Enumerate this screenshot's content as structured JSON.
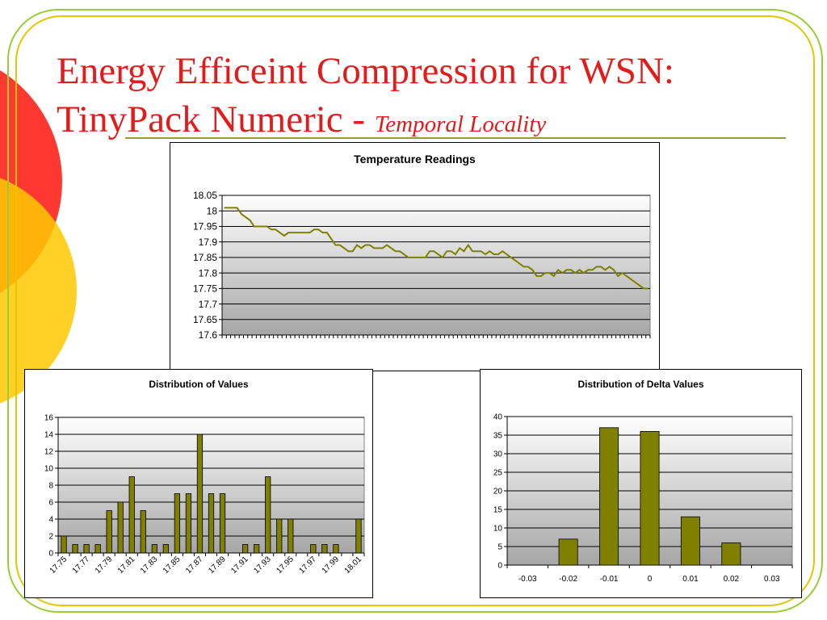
{
  "slide": {
    "title_line1": "Energy Efficeint Compression for WSN:",
    "title_line2": "TinyPack Numeric - ",
    "title_sub": "Temporal Locality",
    "colors": {
      "title": "#e21b1b",
      "series": "#808000",
      "border_accent": "#9acd32"
    }
  },
  "chart_data": [
    {
      "type": "line",
      "title": "Temperature Readings",
      "xlabel": "",
      "ylabel": "",
      "ylim": [
        17.6,
        18.05
      ],
      "yticks": [
        "17.6",
        "17.65",
        "17.7",
        "17.75",
        "17.8",
        "17.85",
        "17.9",
        "17.95",
        "18",
        "18.05"
      ],
      "grid": true,
      "series": [
        {
          "color": "#808000",
          "values": [
            18.01,
            18.01,
            18.01,
            18.01,
            17.99,
            17.98,
            17.97,
            17.95,
            17.95,
            17.95,
            17.95,
            17.94,
            17.94,
            17.93,
            17.92,
            17.93,
            17.93,
            17.93,
            17.93,
            17.93,
            17.93,
            17.94,
            17.94,
            17.93,
            17.93,
            17.91,
            17.89,
            17.89,
            17.88,
            17.87,
            17.87,
            17.89,
            17.88,
            17.89,
            17.89,
            17.88,
            17.88,
            17.88,
            17.89,
            17.88,
            17.87,
            17.87,
            17.86,
            17.85,
            17.85,
            17.85,
            17.85,
            17.85,
            17.87,
            17.87,
            17.86,
            17.85,
            17.87,
            17.87,
            17.86,
            17.88,
            17.87,
            17.89,
            17.87,
            17.87,
            17.87,
            17.86,
            17.87,
            17.86,
            17.86,
            17.87,
            17.86,
            17.85,
            17.84,
            17.83,
            17.82,
            17.82,
            17.81,
            17.79,
            17.79,
            17.8,
            17.8,
            17.79,
            17.81,
            17.8,
            17.81,
            17.81,
            17.8,
            17.81,
            17.8,
            17.81,
            17.81,
            17.82,
            17.82,
            17.81,
            17.82,
            17.81,
            17.79,
            17.8,
            17.79,
            17.78,
            17.77,
            17.76,
            17.75,
            17.75
          ]
        }
      ]
    },
    {
      "type": "bar",
      "title": "Distribution of Values",
      "xlabel": "",
      "ylabel": "",
      "ylim": [
        0,
        16
      ],
      "yticks": [
        "0",
        "2",
        "4",
        "6",
        "8",
        "10",
        "12",
        "14",
        "16"
      ],
      "grid": true,
      "categories": [
        "17.75",
        "17.76",
        "17.77",
        "17.78",
        "17.79",
        "17.8",
        "17.81",
        "17.82",
        "17.83",
        "17.84",
        "17.85",
        "17.86",
        "17.87",
        "17.88",
        "17.89",
        "17.9",
        "17.91",
        "17.92",
        "17.93",
        "17.94",
        "17.95",
        "17.96",
        "17.97",
        "17.98",
        "17.99",
        "18",
        "18.01"
      ],
      "tick_labels": [
        "17.75",
        "",
        "17.77",
        "",
        "17.79",
        "",
        "17.81",
        "",
        "17.83",
        "",
        "17.85",
        "",
        "17.87",
        "",
        "17.89",
        "",
        "17.91",
        "",
        "17.93",
        "",
        "17.95",
        "",
        "17.97",
        "",
        "17.99",
        "",
        "18.01"
      ],
      "values": [
        2,
        1,
        1,
        1,
        5,
        6,
        9,
        5,
        1,
        1,
        7,
        7,
        14,
        7,
        7,
        0,
        1,
        1,
        9,
        4,
        4,
        0,
        1,
        1,
        1,
        0,
        4
      ],
      "color": "#808000"
    },
    {
      "type": "bar",
      "title": "Distribution of Delta Values",
      "xlabel": "",
      "ylabel": "",
      "ylim": [
        0,
        40
      ],
      "yticks": [
        "0",
        "5",
        "10",
        "15",
        "20",
        "25",
        "30",
        "35",
        "40"
      ],
      "grid": true,
      "categories": [
        "-0.03",
        "-0.02",
        "-0.01",
        "0",
        "0.01",
        "0.02",
        "0.03"
      ],
      "tick_labels": [
        "-0.03",
        "-0.02",
        "-0.01",
        "0",
        "0.01",
        "0.02",
        "0.03"
      ],
      "values": [
        0,
        7,
        37,
        36,
        13,
        6,
        0
      ],
      "color": "#808000"
    }
  ]
}
